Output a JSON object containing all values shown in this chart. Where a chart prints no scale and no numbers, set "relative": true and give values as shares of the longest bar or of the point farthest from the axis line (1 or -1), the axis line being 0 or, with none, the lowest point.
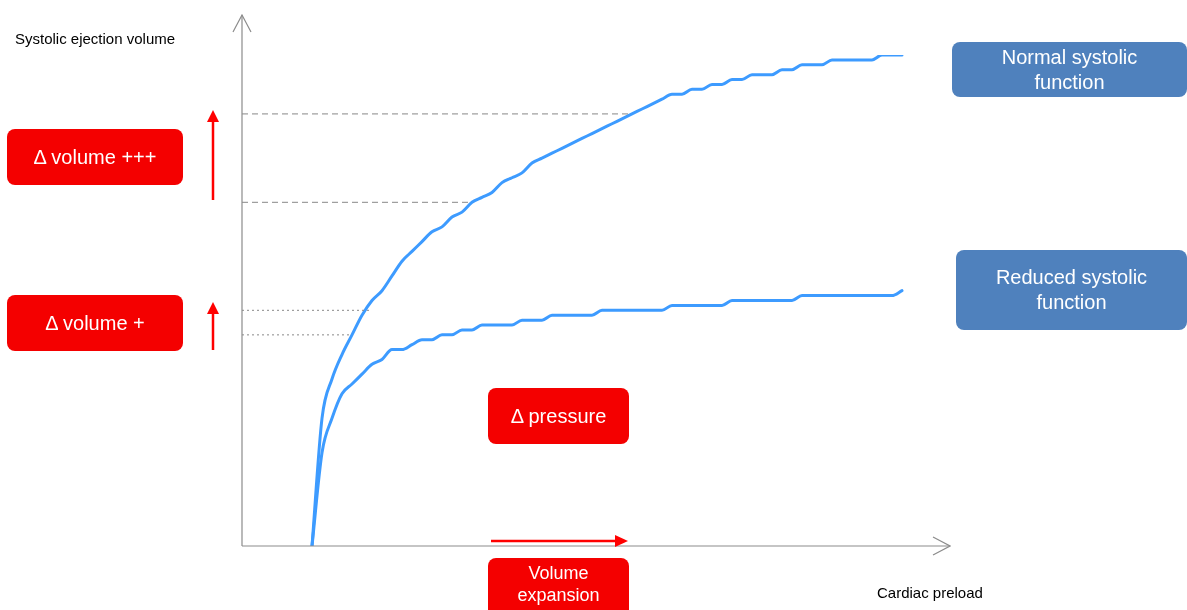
{
  "chart_data": {
    "type": "line",
    "relative": true,
    "xlabel": "Cardiac preload",
    "ylabel": "Systolic ejection volume",
    "categories": [
      null,
      null,
      null,
      null,
      null,
      null,
      null,
      null,
      null,
      null,
      null,
      null,
      null,
      null,
      null,
      null,
      null,
      null,
      null,
      null,
      null,
      null,
      null,
      null,
      null,
      null,
      null,
      null,
      null,
      null,
      null,
      null,
      null,
      null,
      null,
      null,
      null,
      null,
      null,
      null,
      null,
      null,
      null,
      null,
      null,
      null,
      null,
      null,
      null,
      null,
      null,
      null,
      null,
      null,
      null,
      null,
      null,
      null,
      null,
      null,
      null,
      null,
      null,
      null,
      null,
      null,
      null,
      null,
      null,
      null,
      null
    ],
    "series": [
      {
        "name": "Normal systolic function",
        "color": "#3d9bff",
        "values": [
          null,
          null,
          null,
          null,
          null,
          null,
          null,
          0,
          0.26,
          0.34,
          0.39,
          0.43,
          0.47,
          0.5,
          0.52,
          0.55,
          0.58,
          0.6,
          0.62,
          0.64,
          0.65,
          0.67,
          0.68,
          0.7,
          0.71,
          0.72,
          0.74,
          0.75,
          0.76,
          0.78,
          0.79,
          0.8,
          0.81,
          0.82,
          0.83,
          0.84,
          0.85,
          0.86,
          0.87,
          0.88,
          0.89,
          0.9,
          0.91,
          0.92,
          0.92,
          0.93,
          0.93,
          0.94,
          0.94,
          0.95,
          0.95,
          0.96,
          0.96,
          0.96,
          0.97,
          0.97,
          0.98,
          0.98,
          0.98,
          0.99,
          0.99,
          0.99,
          0.99,
          0.99,
          1.0,
          1.0,
          1.0,
          null,
          null,
          null,
          null
        ]
      },
      {
        "name": "Reduced systolic function",
        "color": "#3d9bff",
        "values": [
          null,
          null,
          null,
          null,
          null,
          null,
          null,
          0,
          0.19,
          0.26,
          0.31,
          0.33,
          0.35,
          0.37,
          0.38,
          0.4,
          0.4,
          0.41,
          0.42,
          0.42,
          0.43,
          0.43,
          0.44,
          0.44,
          0.45,
          0.45,
          0.45,
          0.45,
          0.46,
          0.46,
          0.46,
          0.47,
          0.47,
          0.47,
          0.47,
          0.47,
          0.48,
          0.48,
          0.48,
          0.48,
          0.48,
          0.48,
          0.48,
          0.49,
          0.49,
          0.49,
          0.49,
          0.49,
          0.49,
          0.5,
          0.5,
          0.5,
          0.5,
          0.5,
          0.5,
          0.5,
          0.51,
          0.51,
          0.51,
          0.51,
          0.51,
          0.51,
          0.51,
          0.51,
          0.51,
          0.51,
          0.52,
          null,
          null,
          null,
          null
        ]
      }
    ],
    "ref_lines": [
      {
        "axis": "y",
        "value": 0.88,
        "color": "#888888",
        "line_style": "dashed"
      },
      {
        "axis": "y",
        "value": 0.7,
        "color": "#888888",
        "line_style": "dashed"
      },
      {
        "axis": "y",
        "value": 0.48,
        "color": "#888888",
        "line_style": "dotted"
      },
      {
        "axis": "y",
        "value": 0.43,
        "color": "#888888",
        "line_style": "dotted"
      }
    ],
    "annotations": [
      "Δ volume +++",
      "Δ volume +",
      "Δ pressure",
      "Volume expansion"
    ],
    "legend": false,
    "marker": "none",
    "line_style": "solid"
  }
}
